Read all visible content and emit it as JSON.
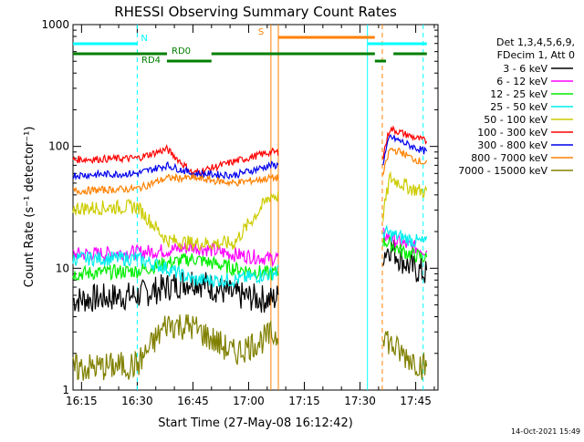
{
  "chart_data": {
    "type": "line",
    "title": "RHESSI Observing Summary Count Rates",
    "xlabel": "Start Time (27-May-08 16:12:42)",
    "ylabel": "Count Rate (s⁻¹ detector⁻¹)",
    "yscale": "log",
    "ylim": [
      1,
      1000
    ],
    "xlim": [
      "16:12:42",
      "17:51:00"
    ],
    "x_ticks": [
      "16:15",
      "16:30",
      "16:45",
      "17:00",
      "17:15",
      "17:30",
      "17:45"
    ],
    "y_ticks": [
      "1",
      "10",
      "100",
      "1000"
    ],
    "legend_title_lines": [
      "Det 1,3,4,5,6,9,",
      "FDecim 1, Att 0"
    ],
    "legend_position": "right",
    "grid": false,
    "series": [
      {
        "name": "3 - 6 keV",
        "color": "#000000",
        "x": [
          "16:12:42",
          "16:30",
          "16:38",
          "16:45",
          "16:56",
          "17:06",
          "17:36",
          "17:38",
          "17:41",
          "17:44",
          "17:48"
        ],
        "values": [
          5.5,
          6,
          7,
          8,
          6,
          5.5,
          13,
          15,
          12,
          10,
          9
        ]
      },
      {
        "name": "6 - 12 keV",
        "color": "#ff00ff",
        "x": [
          "16:12:42",
          "16:30",
          "16:38",
          "16:45",
          "16:56",
          "17:06",
          "17:36",
          "17:38",
          "17:41",
          "17:44",
          "17:48"
        ],
        "values": [
          13,
          13.5,
          14,
          15,
          13,
          12,
          19,
          18,
          16,
          15,
          14
        ]
      },
      {
        "name": "12 - 25 keV",
        "color": "#00ee00",
        "x": [
          "16:12:42",
          "16:30",
          "16:38",
          "16:45",
          "16:56",
          "17:06",
          "17:36",
          "17:38",
          "17:41",
          "17:44",
          "17:48"
        ],
        "values": [
          9,
          9.5,
          11,
          12,
          10,
          9,
          17,
          16,
          14,
          13,
          12
        ]
      },
      {
        "name": "25 - 50 keV",
        "color": "#00eeee",
        "x": [
          "16:12:42",
          "16:30",
          "16:38",
          "16:45",
          "16:56",
          "17:06",
          "17:36",
          "17:38",
          "17:41",
          "17:44",
          "17:48"
        ],
        "values": [
          12,
          12,
          10,
          8,
          8,
          9,
          20,
          19,
          18,
          17,
          16
        ]
      },
      {
        "name": "50 - 100 keV",
        "color": "#cccc00",
        "x": [
          "16:12:42",
          "16:30",
          "16:38",
          "16:45",
          "16:56",
          "17:06",
          "17:36",
          "17:38",
          "17:41",
          "17:44",
          "17:48"
        ],
        "values": [
          31,
          32,
          17,
          16,
          16,
          40,
          25,
          55,
          50,
          45,
          42
        ]
      },
      {
        "name": "100 - 300 keV",
        "color": "#ff0000",
        "x": [
          "16:12:42",
          "16:30",
          "16:38",
          "16:45",
          "16:56",
          "17:06",
          "17:36",
          "17:38",
          "17:41",
          "17:44",
          "17:48"
        ],
        "values": [
          78,
          80,
          95,
          60,
          75,
          90,
          80,
          140,
          130,
          120,
          110
        ]
      },
      {
        "name": "300 - 800 keV",
        "color": "#0000ee",
        "x": [
          "16:12:42",
          "16:30",
          "16:38",
          "16:45",
          "16:56",
          "17:06",
          "17:36",
          "17:38",
          "17:41",
          "17:44",
          "17:48"
        ],
        "values": [
          58,
          60,
          70,
          60,
          58,
          70,
          70,
          120,
          110,
          100,
          90
        ]
      },
      {
        "name": "800 - 7000 keV",
        "color": "#ff8000",
        "x": [
          "16:12:42",
          "16:30",
          "16:38",
          "16:45",
          "16:56",
          "17:06",
          "17:36",
          "17:38",
          "17:41",
          "17:44",
          "17:48"
        ],
        "values": [
          43,
          45,
          55,
          55,
          50,
          55,
          55,
          95,
          90,
          80,
          72
        ]
      },
      {
        "name": "7000 - 15000 keV",
        "color": "#808000",
        "x": [
          "16:12:42",
          "16:30",
          "16:38",
          "16:45",
          "16:56",
          "17:06",
          "17:36",
          "17:38",
          "17:41",
          "17:44",
          "17:48"
        ],
        "values": [
          1.5,
          1.6,
          3.5,
          3.3,
          2,
          2.8,
          3.2,
          2.4,
          2,
          1.8,
          1.5
        ]
      }
    ],
    "annotations": [
      {
        "label": "N",
        "color": "#00ffff",
        "x": "16:30",
        "bar_segments": [
          [
            "16:12:42",
            "16:30"
          ],
          [
            "17:32",
            "17:48"
          ]
        ]
      },
      {
        "label": "S",
        "color": "#ff8000",
        "x": "17:06",
        "bar_segments": [
          [
            "17:08",
            "17:34"
          ]
        ]
      },
      {
        "label": "RD0",
        "color": "#007f00",
        "bar_segments": [
          [
            "16:12:42",
            "16:38"
          ],
          [
            "16:50",
            "17:34"
          ],
          [
            "17:39",
            "17:48"
          ]
        ]
      },
      {
        "label": "RD4",
        "color": "#007f00",
        "bar_segments": [
          [
            "16:38",
            "16:50"
          ],
          [
            "17:34",
            "17:37"
          ]
        ]
      }
    ],
    "vertical_markers": [
      {
        "x": "16:30",
        "color": "#00ffff",
        "style": "dashed"
      },
      {
        "x": "17:32",
        "color": "#00ffff",
        "style": "solid"
      },
      {
        "x": "17:47",
        "color": "#00ffff",
        "style": "dashed"
      },
      {
        "x": "17:06",
        "color": "#ff8000",
        "style": "solid"
      },
      {
        "x": "17:08",
        "color": "#ff8000",
        "style": "solid"
      },
      {
        "x": "17:36",
        "color": "#ff8000",
        "style": "dashed"
      }
    ],
    "data_gaps": [
      [
        "17:08",
        "17:36"
      ]
    ]
  },
  "footer": {
    "date": "14-Oct-2021 15:49"
  }
}
